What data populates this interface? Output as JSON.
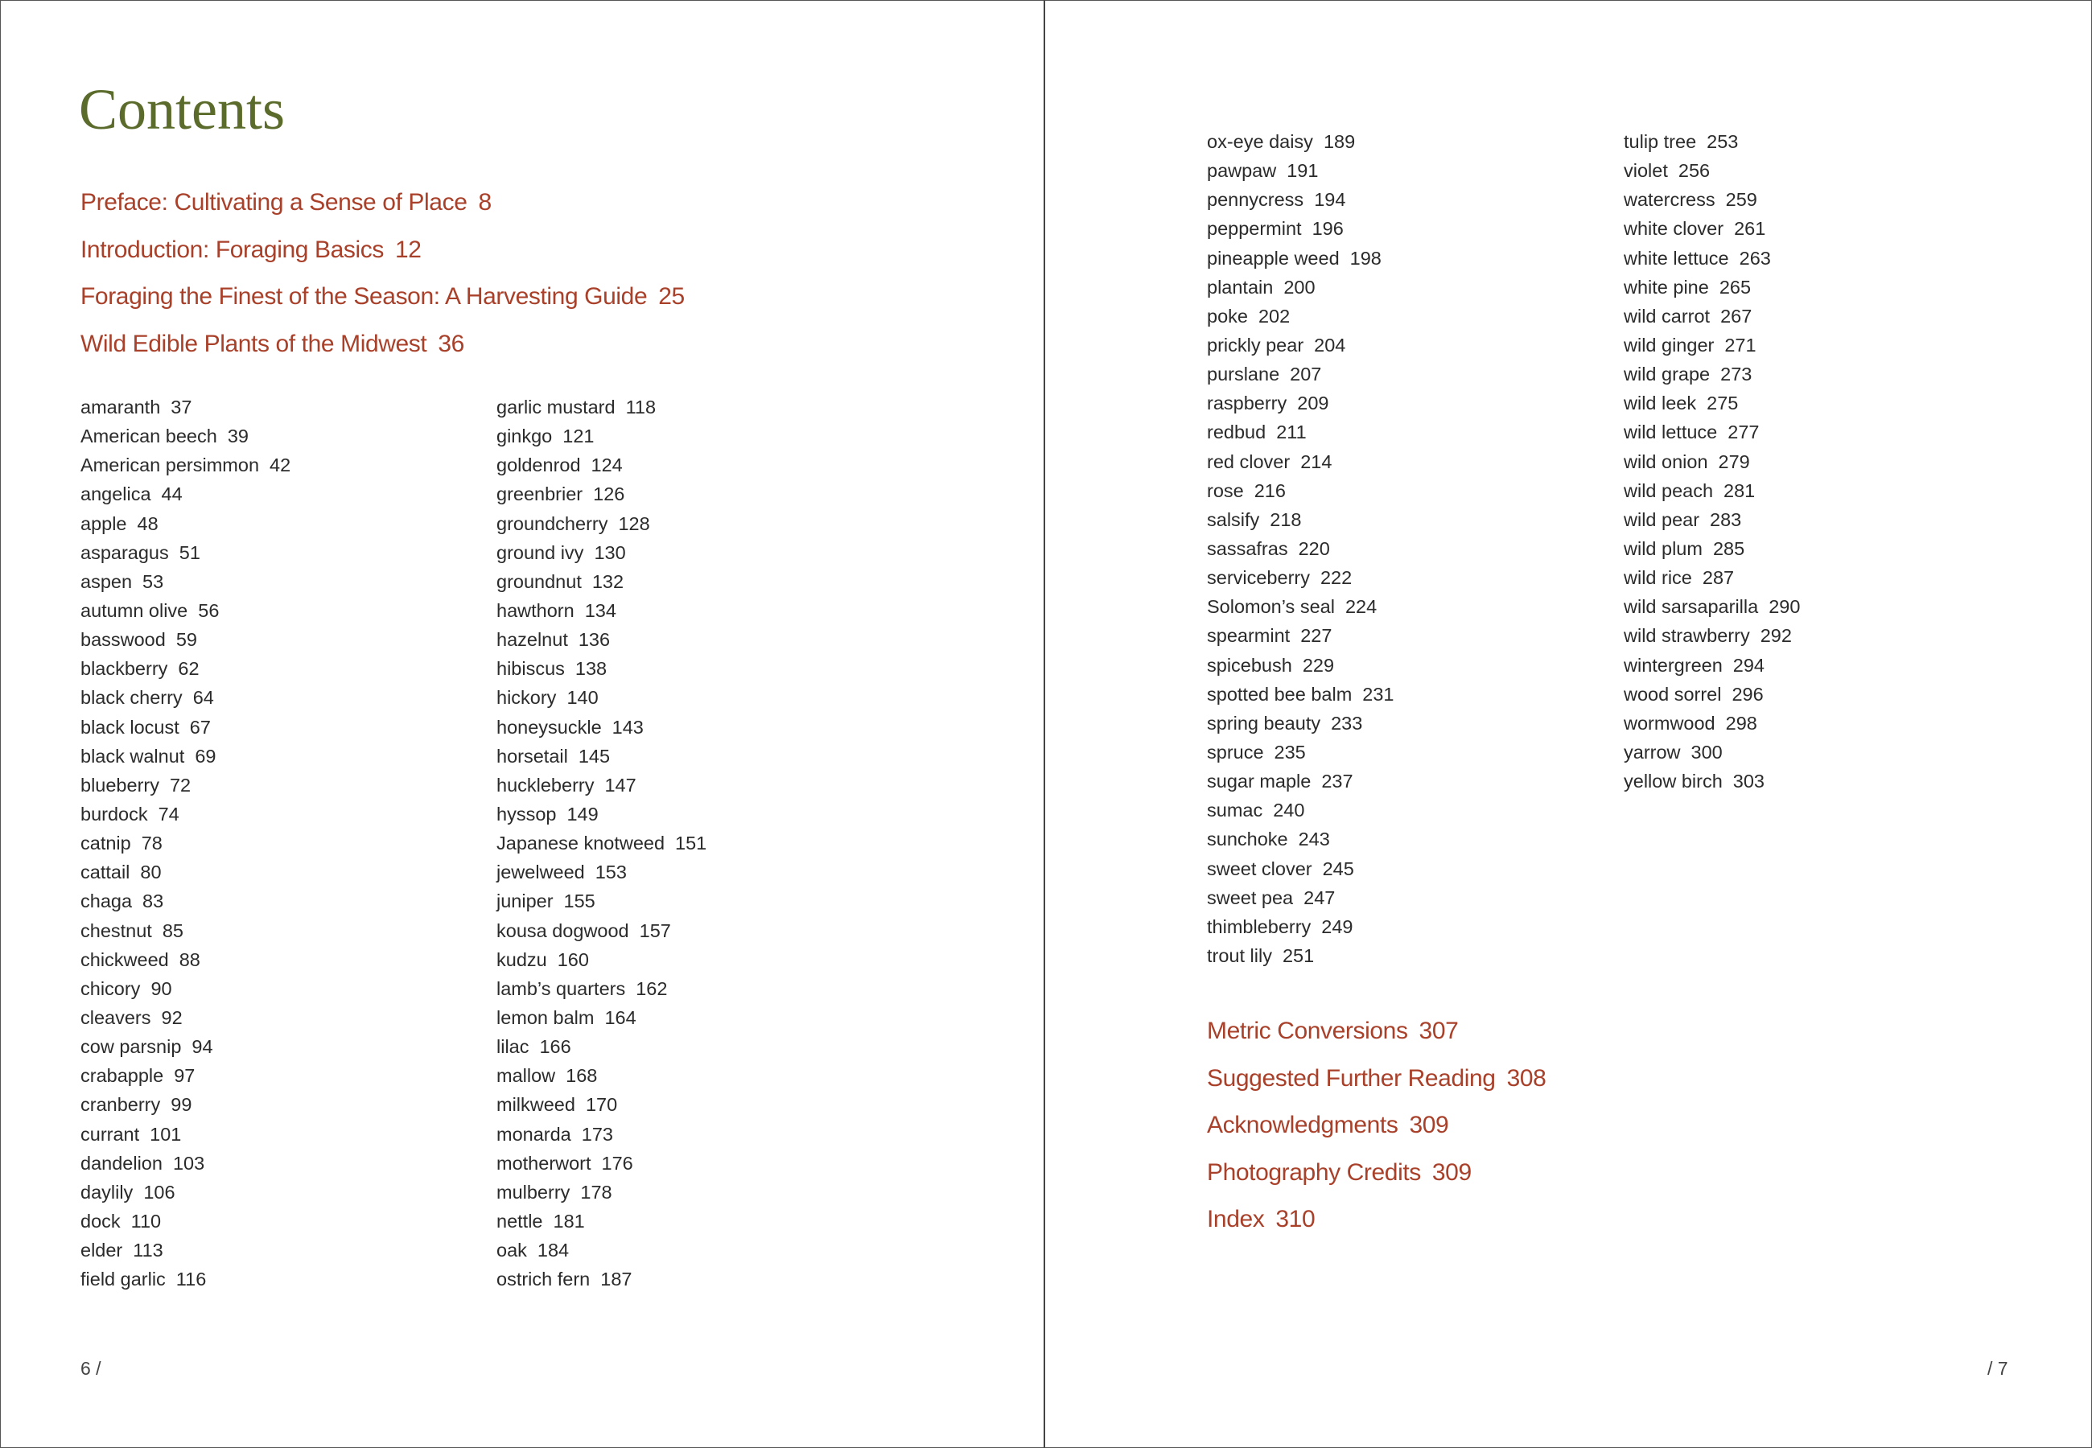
{
  "left_page": {
    "title": "Contents",
    "sections": [
      {
        "label": "Preface: Cultivating a Sense of Place",
        "page": "8"
      },
      {
        "label": "Introduction: Foraging Basics",
        "page": "12"
      },
      {
        "label": "Foraging the Finest of the Season: A Harvesting Guide",
        "page": "25"
      },
      {
        "label": "Wild Edible Plants of the Midwest",
        "page": "36"
      }
    ],
    "column1": [
      {
        "name": "amaranth",
        "page": "37"
      },
      {
        "name": "American beech",
        "page": "39"
      },
      {
        "name": "American persimmon",
        "page": "42"
      },
      {
        "name": "angelica",
        "page": "44"
      },
      {
        "name": "apple",
        "page": "48"
      },
      {
        "name": "asparagus",
        "page": "51"
      },
      {
        "name": "aspen",
        "page": "53"
      },
      {
        "name": "autumn olive",
        "page": "56"
      },
      {
        "name": "basswood",
        "page": "59"
      },
      {
        "name": "blackberry",
        "page": "62"
      },
      {
        "name": "black cherry",
        "page": "64"
      },
      {
        "name": "black locust",
        "page": "67"
      },
      {
        "name": "black walnut",
        "page": "69"
      },
      {
        "name": "blueberry",
        "page": "72"
      },
      {
        "name": "burdock",
        "page": "74"
      },
      {
        "name": "catnip",
        "page": "78"
      },
      {
        "name": "cattail",
        "page": "80"
      },
      {
        "name": "chaga",
        "page": "83"
      },
      {
        "name": "chestnut",
        "page": "85"
      },
      {
        "name": "chickweed",
        "page": "88"
      },
      {
        "name": "chicory",
        "page": "90"
      },
      {
        "name": "cleavers",
        "page": "92"
      },
      {
        "name": "cow parsnip",
        "page": "94"
      },
      {
        "name": "crabapple",
        "page": "97"
      },
      {
        "name": "cranberry",
        "page": "99"
      },
      {
        "name": "currant",
        "page": "101"
      },
      {
        "name": "dandelion",
        "page": "103"
      },
      {
        "name": "daylily",
        "page": "106"
      },
      {
        "name": "dock",
        "page": "110"
      },
      {
        "name": "elder",
        "page": "113"
      },
      {
        "name": "field garlic",
        "page": "116"
      }
    ],
    "column2": [
      {
        "name": "garlic mustard",
        "page": "118"
      },
      {
        "name": "ginkgo",
        "page": "121"
      },
      {
        "name": "goldenrod",
        "page": "124"
      },
      {
        "name": "greenbrier",
        "page": "126"
      },
      {
        "name": "groundcherry",
        "page": "128"
      },
      {
        "name": "ground ivy",
        "page": "130"
      },
      {
        "name": "groundnut",
        "page": "132"
      },
      {
        "name": "hawthorn",
        "page": "134"
      },
      {
        "name": "hazelnut",
        "page": "136"
      },
      {
        "name": "hibiscus",
        "page": "138"
      },
      {
        "name": "hickory",
        "page": "140"
      },
      {
        "name": "honeysuckle",
        "page": "143"
      },
      {
        "name": "horsetail",
        "page": "145"
      },
      {
        "name": "huckleberry",
        "page": "147"
      },
      {
        "name": "hyssop",
        "page": "149"
      },
      {
        "name": "Japanese knotweed",
        "page": "151"
      },
      {
        "name": "jewelweed",
        "page": "153"
      },
      {
        "name": "juniper",
        "page": "155"
      },
      {
        "name": "kousa dogwood",
        "page": "157"
      },
      {
        "name": "kudzu",
        "page": "160"
      },
      {
        "name": "lamb’s quarters",
        "page": "162"
      },
      {
        "name": "lemon balm",
        "page": "164"
      },
      {
        "name": "lilac",
        "page": "166"
      },
      {
        "name": "mallow",
        "page": "168"
      },
      {
        "name": "milkweed",
        "page": "170"
      },
      {
        "name": "monarda",
        "page": "173"
      },
      {
        "name": "motherwort",
        "page": "176"
      },
      {
        "name": "mulberry",
        "page": "178"
      },
      {
        "name": "nettle",
        "page": "181"
      },
      {
        "name": "oak",
        "page": "184"
      },
      {
        "name": "ostrich fern",
        "page": "187"
      }
    ],
    "folio": "6 /"
  },
  "right_page": {
    "column1": [
      {
        "name": "ox-eye daisy",
        "page": "189"
      },
      {
        "name": "pawpaw",
        "page": "191"
      },
      {
        "name": "pennycress",
        "page": "194"
      },
      {
        "name": "peppermint",
        "page": "196"
      },
      {
        "name": "pineapple weed",
        "page": "198"
      },
      {
        "name": "plantain",
        "page": "200"
      },
      {
        "name": "poke",
        "page": "202"
      },
      {
        "name": "prickly pear",
        "page": "204"
      },
      {
        "name": "purslane",
        "page": "207"
      },
      {
        "name": "raspberry",
        "page": "209"
      },
      {
        "name": "redbud",
        "page": "211"
      },
      {
        "name": "red clover",
        "page": "214"
      },
      {
        "name": "rose",
        "page": "216"
      },
      {
        "name": "salsify",
        "page": "218"
      },
      {
        "name": "sassafras",
        "page": "220"
      },
      {
        "name": "serviceberry",
        "page": "222"
      },
      {
        "name": "Solomon’s seal",
        "page": "224"
      },
      {
        "name": "spearmint",
        "page": "227"
      },
      {
        "name": "spicebush",
        "page": "229"
      },
      {
        "name": "spotted bee balm",
        "page": "231"
      },
      {
        "name": "spring beauty",
        "page": "233"
      },
      {
        "name": "spruce",
        "page": "235"
      },
      {
        "name": "sugar maple",
        "page": "237"
      },
      {
        "name": "sumac",
        "page": "240"
      },
      {
        "name": "sunchoke",
        "page": "243"
      },
      {
        "name": "sweet clover",
        "page": "245"
      },
      {
        "name": "sweet pea",
        "page": "247"
      },
      {
        "name": "thimbleberry",
        "page": "249"
      },
      {
        "name": "trout lily",
        "page": "251"
      }
    ],
    "column2": [
      {
        "name": "tulip tree",
        "page": "253"
      },
      {
        "name": "violet",
        "page": "256"
      },
      {
        "name": "watercress",
        "page": "259"
      },
      {
        "name": "white clover",
        "page": "261"
      },
      {
        "name": "white lettuce",
        "page": "263"
      },
      {
        "name": "white pine",
        "page": "265"
      },
      {
        "name": "wild carrot",
        "page": "267"
      },
      {
        "name": "wild ginger",
        "page": "271"
      },
      {
        "name": "wild grape",
        "page": "273"
      },
      {
        "name": "wild leek",
        "page": "275"
      },
      {
        "name": "wild lettuce",
        "page": "277"
      },
      {
        "name": "wild onion",
        "page": "279"
      },
      {
        "name": "wild peach",
        "page": "281"
      },
      {
        "name": "wild pear",
        "page": "283"
      },
      {
        "name": "wild plum",
        "page": "285"
      },
      {
        "name": "wild rice",
        "page": "287"
      },
      {
        "name": "wild sarsaparilla",
        "page": "290"
      },
      {
        "name": "wild strawberry",
        "page": "292"
      },
      {
        "name": "wintergreen",
        "page": "294"
      },
      {
        "name": "wood sorrel",
        "page": "296"
      },
      {
        "name": "wormwood",
        "page": "298"
      },
      {
        "name": "yarrow",
        "page": "300"
      },
      {
        "name": "yellow birch",
        "page": "303"
      }
    ],
    "sections": [
      {
        "label": "Metric Conversions",
        "page": "307"
      },
      {
        "label": "Suggested Further Reading",
        "page": "308"
      },
      {
        "label": "Acknowledgments",
        "page": "309"
      },
      {
        "label": "Photography Credits",
        "page": "309"
      },
      {
        "label": "Index",
        "page": "310"
      }
    ],
    "folio": "/ 7"
  },
  "colors": {
    "title": "#5b6b2c",
    "section": "#a8402a",
    "text": "#2b2b2b"
  }
}
